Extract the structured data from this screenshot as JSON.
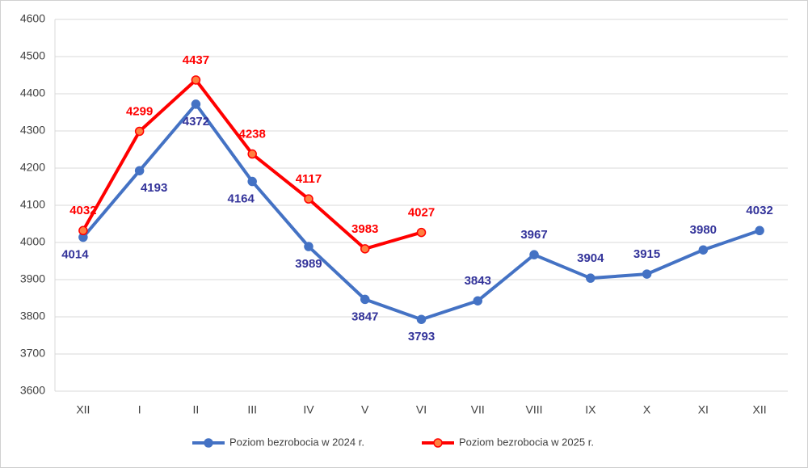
{
  "chart_data": {
    "type": "line",
    "categories": [
      "XII",
      "I",
      "II",
      "III",
      "IV",
      "V",
      "VI",
      "VII",
      "VIII",
      "IX",
      "X",
      "XI",
      "XII"
    ],
    "series": [
      {
        "name": "Poziom bezrobocia w 2024 r.",
        "color": "#4472c4",
        "label_color": "#33339a",
        "marker_fill": "#4472c4",
        "values": [
          4014,
          4193,
          4372,
          4164,
          3989,
          3847,
          3793,
          3843,
          3967,
          3904,
          3915,
          3980,
          4032
        ]
      },
      {
        "name": "Poziom bezrobocia w 2025 r.",
        "color": "#ff0000",
        "label_color": "#ff0000",
        "marker_fill": "#ff8040",
        "values": [
          4032,
          4299,
          4437,
          4238,
          4117,
          3983,
          4027,
          null,
          null,
          null,
          null,
          null,
          null
        ]
      }
    ],
    "ylim": [
      3600,
      4600
    ],
    "yticks": [
      3600,
      3700,
      3800,
      3900,
      4000,
      4100,
      4200,
      4300,
      4400,
      4500,
      4600
    ],
    "grid": true,
    "legend": "bottom"
  }
}
